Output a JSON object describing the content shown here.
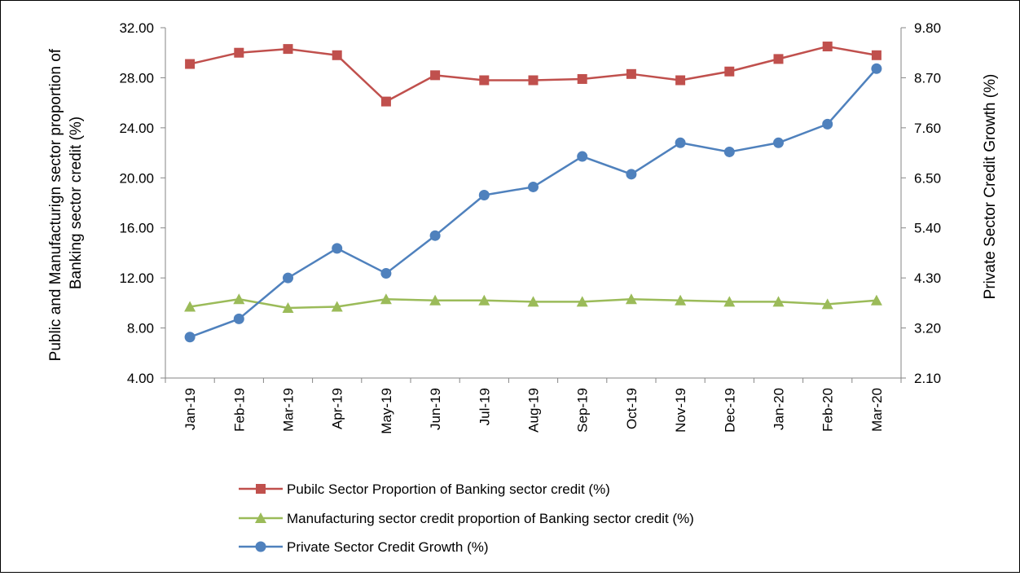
{
  "chart_data": {
    "type": "line",
    "categories": [
      "Jan-19",
      "Feb-19",
      "Mar-19",
      "Apr-19",
      "May-19",
      "Jun-19",
      "Jul-19",
      "Aug-19",
      "Sep-19",
      "Oct-19",
      "Nov-19",
      "Dec-19",
      "Jan-20",
      "Feb-20",
      "Mar-20"
    ],
    "y_left": {
      "label_lines": [
        "Public and Manufacturign sector proportion of",
        "Banking sector credit (%)"
      ],
      "range": [
        4.0,
        32.0
      ],
      "ticks": [
        "4.00",
        "8.00",
        "12.00",
        "16.00",
        "20.00",
        "24.00",
        "28.00",
        "32.00"
      ]
    },
    "y_right": {
      "label": "Private Sector Credit Growth (%)",
      "range": [
        2.1,
        9.8
      ],
      "ticks": [
        "2.10",
        "3.20",
        "4.30",
        "5.40",
        "6.50",
        "7.60",
        "8.70",
        "9.80"
      ]
    },
    "gridlines": false,
    "legend_position": "bottom",
    "series": [
      {
        "name": "Pubilc Sector Proportion of Banking sector credit (%)",
        "axis": "left",
        "color": "#C0504D",
        "marker": "square",
        "values": [
          29.1,
          30.0,
          30.3,
          29.8,
          26.1,
          28.2,
          27.8,
          27.8,
          27.9,
          28.3,
          27.8,
          28.5,
          29.5,
          30.5,
          29.8
        ]
      },
      {
        "name": "Manufacturing sector credit proportion of Banking sector credit (%)",
        "axis": "left",
        "color": "#9BBB59",
        "marker": "triangle",
        "values": [
          9.7,
          10.3,
          9.6,
          9.7,
          10.3,
          10.2,
          10.2,
          10.1,
          10.1,
          10.3,
          10.2,
          10.1,
          10.1,
          9.9,
          10.2
        ]
      },
      {
        "name": "Private Sector Credit Growth (%)",
        "axis": "right",
        "color": "#4F81BD",
        "marker": "circle",
        "values": [
          3.0,
          3.4,
          4.3,
          4.95,
          4.4,
          5.23,
          6.12,
          6.3,
          6.97,
          6.58,
          7.27,
          7.07,
          7.27,
          7.68,
          8.9
        ]
      }
    ]
  }
}
